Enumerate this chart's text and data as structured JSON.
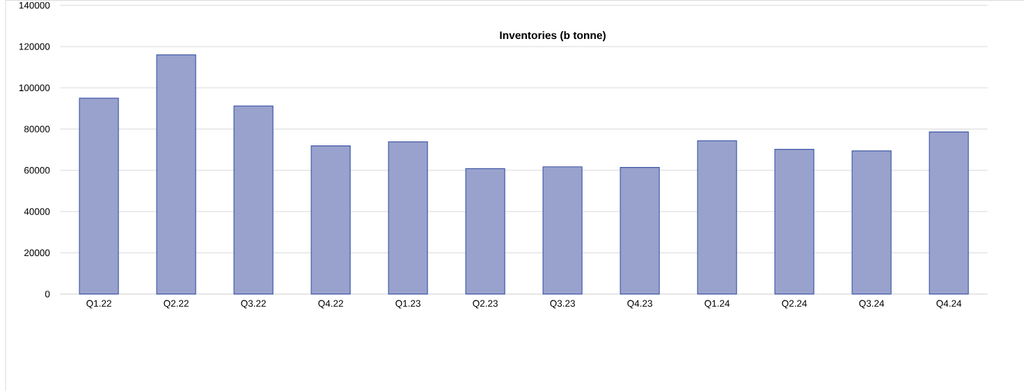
{
  "chart_data": {
    "type": "bar",
    "title": "Inventories (b tonne)",
    "categories": [
      "Q1.22",
      "Q2.22",
      "Q3.22",
      "Q4.22",
      "Q1.23",
      "Q2.23",
      "Q3.23",
      "Q4.23",
      "Q1.24",
      "Q2.24",
      "Q3.24",
      "Q4.24"
    ],
    "values": [
      95000,
      116000,
      91200,
      71900,
      73800,
      60800,
      61700,
      61400,
      74300,
      70200,
      69400,
      78600
    ],
    "color": "#99a2cd",
    "ylim": [
      0,
      140000
    ],
    "yticks": [
      0,
      20000,
      40000,
      60000,
      80000,
      100000,
      120000,
      140000
    ],
    "grid": "y"
  }
}
